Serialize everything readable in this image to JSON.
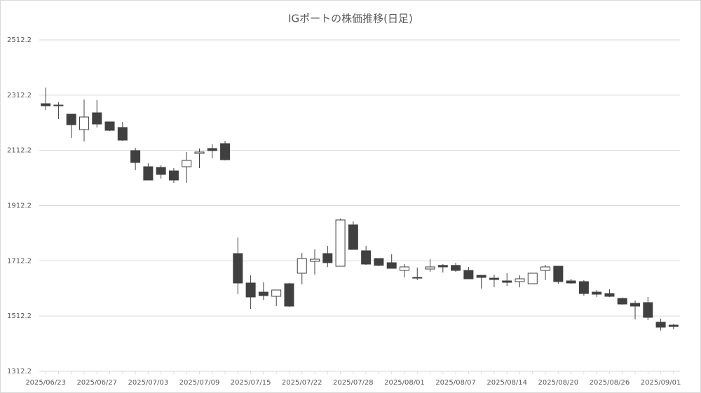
{
  "chart_data": {
    "type": "candlestick",
    "title": "IGポートの株価推移(日足)",
    "categories": [
      "2025/06/23",
      null,
      null,
      null,
      "2025/06/27",
      null,
      null,
      null,
      "2025/07/03",
      null,
      null,
      null,
      "2025/07/09",
      null,
      null,
      null,
      "2025/07/15",
      null,
      null,
      null,
      "2025/07/22",
      null,
      null,
      null,
      "2025/07/28",
      null,
      null,
      null,
      "2025/08/01",
      null,
      null,
      null,
      "2025/08/07",
      null,
      null,
      null,
      "2025/08/14",
      null,
      null,
      null,
      "2025/08/20",
      null,
      null,
      null,
      "2025/08/26",
      null,
      null,
      null,
      "2025/09/01",
      null
    ],
    "open": [
      2281.3,
      2276.3,
      2243.3,
      2187.5,
      2248.3,
      2215.4,
      2195.1,
      2111.4,
      2053.0,
      2050.5,
      2037.8,
      2053.0,
      2101.2,
      2119.0,
      2136.7,
      1738.5,
      1631.9,
      1598.9,
      1583.7,
      1629.3,
      1667.4,
      1710.5,
      1738.5,
      1692.7,
      1842.5,
      1748.6,
      1720.6,
      1705.4,
      1677.5,
      1652.2,
      1682.6,
      1695.7,
      1695.7,
      1677.5,
      1659.8,
      1649.4,
      1639.5,
      1637.0,
      1629.3,
      1677.5,
      1692.7,
      1639.5,
      1637.0,
      1598.9,
      1593.8,
      1576.1,
      1558.3,
      1560.9,
      1489.8,
      1479.4
    ],
    "high": [
      2339.7,
      2286.4,
      2243.3,
      2296.5,
      2294.0,
      2215.4,
      2215.4,
      2121.5,
      2065.7,
      2058.1,
      2047.9,
      2106.3,
      2119.0,
      2134.2,
      2146.9,
      1796.8,
      1659.8,
      1634.4,
      1606.5,
      1631.9,
      1740.9,
      1753.6,
      1766.3,
      1865.3,
      1855.2,
      1766.3,
      1720.6,
      1735.9,
      1700.4,
      1687.7,
      1718.1,
      1700.4,
      1705.4,
      1690.2,
      1659.8,
      1662.3,
      1667.4,
      1659.8,
      1667.4,
      1697.9,
      1692.7,
      1647.1,
      1642.3,
      1606.5,
      1609.0,
      1579.1,
      1568.4,
      1581.2,
      1502.5,
      1484.3
    ],
    "low": [
      2258.5,
      2225.5,
      2157.0,
      2144.3,
      2195.1,
      2182.4,
      2146.9,
      2040.3,
      2004.8,
      2009.9,
      1994.7,
      1994.7,
      2047.9,
      2083.4,
      2075.8,
      1591.3,
      1538.0,
      1571.0,
      1548.2,
      1545.6,
      1626.8,
      1662.3,
      1690.2,
      1692.7,
      1753.6,
      1697.9,
      1692.7,
      1685.1,
      1652.2,
      1642.3,
      1672.4,
      1669.9,
      1672.4,
      1647.1,
      1611.6,
      1616.4,
      1621.4,
      1616.4,
      1629.3,
      1642.3,
      1629.3,
      1629.3,
      1586.2,
      1581.2,
      1581.2,
      1553.2,
      1500.1,
      1497.4,
      1459.7,
      1464.4
    ],
    "close": [
      2273.7,
      2276.3,
      2205.2,
      2233.1,
      2207.7,
      2184.9,
      2149.4,
      2068.3,
      2004.8,
      2025.1,
      2004.8,
      2075.8,
      2106.3,
      2111.4,
      2078.4,
      1631.9,
      1581.2,
      1586.2,
      1606.5,
      1548.2,
      1720.6,
      1718.1,
      1705.4,
      1860.2,
      1753.6,
      1700.4,
      1695.7,
      1685.1,
      1690.2,
      1649.4,
      1690.2,
      1690.2,
      1677.5,
      1647.1,
      1652.2,
      1644.6,
      1634.4,
      1647.1,
      1667.4,
      1690.2,
      1637.0,
      1631.9,
      1593.8,
      1591.3,
      1583.7,
      1555.8,
      1548.2,
      1507.5,
      1472.0,
      1474.4
    ],
    "ylim": [
      1312.2,
      2512.2
    ],
    "yticks": [
      1312.2,
      1512.2,
      1712.2,
      1912.2,
      2112.2,
      2312.2,
      2512.2
    ],
    "grid": true,
    "up_color": "#ffffff",
    "down_color": "#404040",
    "line_color": "#404040"
  }
}
